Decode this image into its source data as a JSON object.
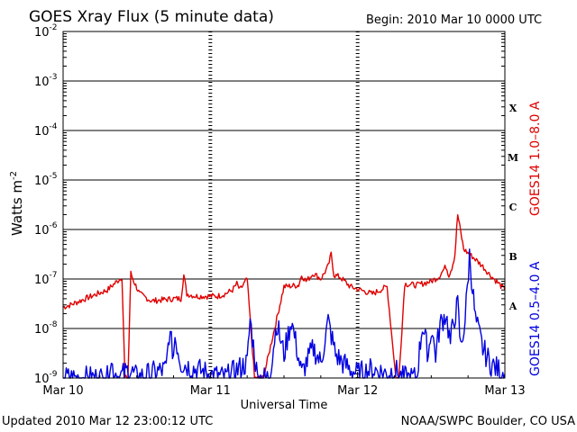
{
  "chart_data": {
    "type": "line",
    "title": "GOES Xray Flux (5 minute data)",
    "begin": "Begin:  2010 Mar 10 0000 UTC",
    "ylabel": "Watts m",
    "ylabel_sup": "-2",
    "xlabel": "Universal Time",
    "y_scale": "log",
    "ylim": [
      1e-09,
      0.01
    ],
    "y_ticks": [
      {
        "base": "10",
        "exp": "-9",
        "value": 1e-09
      },
      {
        "base": "10",
        "exp": "-8",
        "value": 1e-08
      },
      {
        "base": "10",
        "exp": "-7",
        "value": 1e-07
      },
      {
        "base": "10",
        "exp": "-6",
        "value": 1e-06
      },
      {
        "base": "10",
        "exp": "-5",
        "value": 1e-05
      },
      {
        "base": "10",
        "exp": "-4",
        "value": 0.0001
      },
      {
        "base": "10",
        "exp": "-3",
        "value": 0.001
      },
      {
        "base": "10",
        "exp": "-2",
        "value": 0.01
      }
    ],
    "x_ticks": [
      {
        "label": "Mar 10",
        "day": 0
      },
      {
        "label": "Mar 11",
        "day": 1
      },
      {
        "label": "Mar 12",
        "day": 2
      },
      {
        "label": "Mar 13",
        "day": 3
      }
    ],
    "flare_classes": [
      {
        "label": "A",
        "value": 3e-08
      },
      {
        "label": "B",
        "value": 3e-07
      },
      {
        "label": "C",
        "value": 3e-06
      },
      {
        "label": "M",
        "value": 3e-05
      },
      {
        "label": "X",
        "value": 0.0003
      }
    ],
    "grid": "horizontal lines at decades, dashed verticals at day boundaries",
    "series": [
      {
        "name": "GOES14 1.0–8.0 A",
        "color": "#e00000",
        "day": [
          0,
          0.05,
          0.15,
          0.3,
          0.4,
          0.42,
          0.44,
          0.46,
          0.48,
          0.52,
          0.6,
          0.75,
          0.8,
          0.82,
          0.84,
          0.9,
          1.05,
          1.1,
          1.15,
          1.18,
          1.2,
          1.25,
          1.3,
          1.36,
          1.5,
          1.6,
          1.62,
          1.65,
          1.7,
          1.75,
          1.8,
          1.82,
          1.84,
          1.88,
          1.95,
          2.1,
          2.2,
          2.26,
          2.28,
          2.32,
          2.4,
          2.5,
          2.55,
          2.6,
          2.62,
          2.64,
          2.66,
          2.68,
          2.72,
          2.8,
          2.85,
          2.9,
          2.96,
          3.0
        ],
        "flux": [
          2.7e-08,
          3e-08,
          4e-08,
          6e-08,
          1.1e-07,
          1e-09,
          1e-09,
          1.3e-07,
          9e-08,
          5e-08,
          3.6e-08,
          4e-08,
          4e-08,
          1.2e-07,
          5e-08,
          4.5e-08,
          4.5e-08,
          5e-08,
          6e-08,
          8e-08,
          6e-08,
          1e-07,
          1e-09,
          1e-09,
          7e-08,
          7.5e-08,
          1.2e-07,
          9e-08,
          1.3e-07,
          1e-07,
          1.8e-07,
          3.2e-07,
          1.2e-07,
          1.1e-07,
          7e-08,
          5e-08,
          7e-08,
          1e-09,
          1e-09,
          8e-08,
          7.5e-08,
          9e-08,
          1.1e-07,
          1.8e-07,
          1.2e-07,
          1.7e-07,
          3e-07,
          2e-06,
          4e-07,
          2.5e-07,
          1.8e-07,
          1.2e-07,
          8e-08,
          6e-08
        ]
      },
      {
        "name": "GOES14 0.5–4.0 A",
        "color": "#0000e0",
        "day": [
          0,
          0.3,
          0.32,
          0.38,
          0.45,
          0.5,
          0.7,
          0.72,
          0.75,
          0.76,
          0.8,
          0.9,
          1.0,
          1.1,
          1.25,
          1.27,
          1.3,
          1.32,
          1.34,
          1.38,
          1.4,
          1.45,
          1.5,
          1.55,
          1.6,
          1.62,
          1.65,
          1.7,
          1.75,
          1.8,
          1.85,
          1.9,
          1.95,
          2.0,
          2.1,
          2.2,
          2.25,
          2.3,
          2.35,
          2.4,
          2.44,
          2.48,
          2.5,
          2.53,
          2.56,
          2.6,
          2.63,
          2.65,
          2.68,
          2.7,
          2.73,
          2.76,
          2.8,
          2.85,
          2.9,
          2.95,
          3.0
        ],
        "flux": [
          1e-09,
          1e-09,
          2e-09,
          1e-09,
          1.5e-09,
          1e-09,
          1.5e-09,
          8e-09,
          3e-09,
          7e-09,
          2e-09,
          1.5e-09,
          1.2e-09,
          1e-09,
          2e-09,
          1.5e-08,
          3e-09,
          1e-09,
          1e-09,
          1e-09,
          1e-09,
          1.3e-08,
          3e-09,
          1.5e-08,
          2.5e-09,
          1.2e-09,
          2e-09,
          4e-09,
          2e-09,
          1.4e-08,
          3e-09,
          2e-09,
          1.5e-09,
          1.2e-09,
          1.5e-09,
          1.2e-09,
          1.5e-09,
          1e-09,
          1e-09,
          1e-09,
          1.2e-08,
          3e-09,
          1e-08,
          3e-09,
          1.2e-08,
          2e-08,
          5e-09,
          1.4e-08,
          3e-08,
          4e-09,
          1.5e-08,
          3e-07,
          1.5e-08,
          4e-09,
          2e-09,
          1.5e-09,
          1.2e-09
        ]
      }
    ]
  },
  "footer": {
    "updated": "Updated 2010 Mar 12 23:00:12 UTC",
    "credit": "NOAA/SWPC Boulder, CO USA"
  }
}
